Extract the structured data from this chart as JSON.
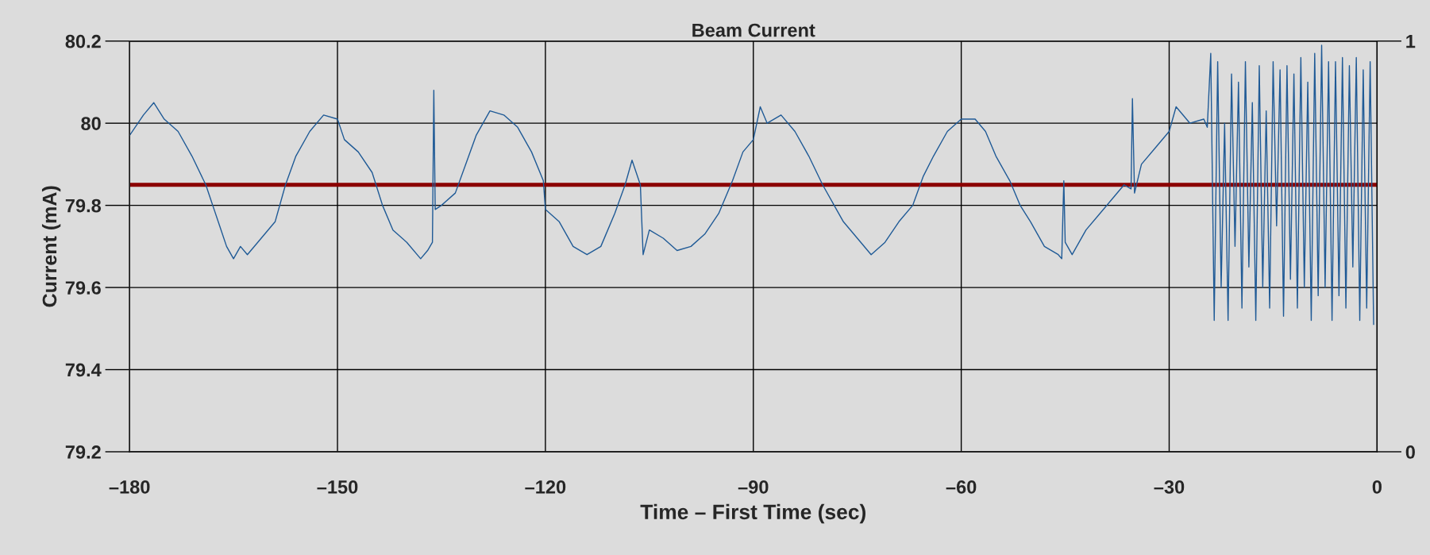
{
  "chart_data": {
    "type": "line",
    "title": "Beam Current",
    "xlabel": "Time – First Time (sec)",
    "ylabel": "Current (mA)",
    "xlim": [
      -180,
      0
    ],
    "xticks": [
      {
        "value": -180,
        "label": "–180"
      },
      {
        "value": -150,
        "label": "–150"
      },
      {
        "value": -120,
        "label": "–120"
      },
      {
        "value": -90,
        "label": "–90"
      },
      {
        "value": -60,
        "label": "–60"
      },
      {
        "value": -30,
        "label": "–30"
      },
      0
    ],
    "ylim": [
      79.2,
      80.2
    ],
    "yticks": [
      79.2,
      79.4,
      79.6,
      79.8,
      80,
      80.2
    ],
    "y2lim": [
      0,
      1
    ],
    "y2ticks": [
      0,
      1
    ],
    "grid": true,
    "series": [
      {
        "color": "#1f5a96",
        "x": [
          -180,
          -178,
          -176.5,
          -175,
          -173,
          -171,
          -169,
          -168,
          -167,
          -166,
          -165,
          -164,
          -163,
          -161,
          -159,
          -157.5,
          -156,
          -154,
          -152,
          -150,
          -149,
          -147,
          -145,
          -143.5,
          -142,
          -140,
          -138,
          -137,
          -136.3,
          -136.1,
          -135.9,
          -135,
          -133,
          -131.5,
          -130,
          -128,
          -126,
          -124,
          -122,
          -120.3,
          -120,
          -118,
          -116,
          -114,
          -112,
          -110,
          -108.5,
          -107.5,
          -106.3,
          -105.9,
          -105,
          -103,
          -101,
          -99,
          -97,
          -95,
          -93,
          -91.5,
          -90,
          -89,
          -88,
          -86,
          -84,
          -82,
          -80,
          -78,
          -77,
          -75,
          -73,
          -71,
          -69,
          -67,
          -65.5,
          -64,
          -62,
          -60,
          -58,
          -56.5,
          -55,
          -53,
          -51.5,
          -50,
          -48,
          -46,
          -45.5,
          -45.2,
          -45,
          -44,
          -42,
          -40,
          -38,
          -36.5,
          -35.5,
          -35.3,
          -35,
          -34,
          -32,
          -30,
          -29,
          -27,
          -25,
          -24.5,
          -24,
          -23.5,
          -23,
          -22.5,
          -22,
          -21.5,
          -21,
          -20.5,
          -20,
          -19.5,
          -19,
          -18.5,
          -18,
          -17.5,
          -17,
          -16.5,
          -16,
          -15.5,
          -15,
          -14.5,
          -14,
          -13.5,
          -13,
          -12.5,
          -12,
          -11.5,
          -11,
          -10.5,
          -10,
          -9.5,
          -9,
          -8.5,
          -8,
          -7.5,
          -7,
          -6.5,
          -6,
          -5.5,
          -5,
          -4.5,
          -4,
          -3.5,
          -3,
          -2.5,
          -2,
          -1.5,
          -1,
          -0.5
        ],
        "values": [
          79.97,
          80.02,
          80.05,
          80.01,
          79.98,
          79.92,
          79.85,
          79.8,
          79.75,
          79.7,
          79.67,
          79.7,
          79.68,
          79.72,
          79.76,
          79.85,
          79.92,
          79.98,
          80.02,
          80.01,
          79.96,
          79.93,
          79.88,
          79.8,
          79.74,
          79.71,
          79.67,
          79.69,
          79.71,
          80.08,
          79.79,
          79.8,
          79.83,
          79.9,
          79.97,
          80.03,
          80.02,
          79.99,
          79.93,
          79.86,
          79.79,
          79.76,
          79.7,
          79.68,
          79.7,
          79.78,
          79.85,
          79.91,
          79.85,
          79.68,
          79.74,
          79.72,
          79.69,
          79.7,
          79.73,
          79.78,
          79.86,
          79.93,
          79.96,
          80.04,
          80.0,
          80.02,
          79.98,
          79.92,
          79.85,
          79.79,
          79.76,
          79.72,
          79.68,
          79.71,
          79.76,
          79.8,
          79.87,
          79.92,
          79.98,
          80.01,
          80.01,
          79.98,
          79.92,
          79.86,
          79.8,
          79.76,
          79.7,
          79.68,
          79.67,
          79.86,
          79.71,
          79.68,
          79.74,
          79.78,
          79.82,
          79.85,
          79.84,
          80.06,
          79.83,
          79.9,
          79.94,
          79.98,
          80.04,
          80.0,
          80.01,
          79.99,
          80.17,
          79.52,
          80.15,
          79.6,
          80.0,
          79.52,
          80.12,
          79.7,
          80.1,
          79.55,
          80.15,
          79.65,
          80.05,
          79.52,
          80.14,
          79.6,
          80.03,
          79.55,
          80.15,
          79.75,
          80.13,
          79.53,
          80.14,
          79.62,
          80.12,
          79.55,
          80.16,
          79.6,
          80.1,
          79.52,
          80.17,
          79.58,
          80.19,
          79.6,
          80.15,
          79.52,
          80.15,
          79.58,
          80.16,
          79.55,
          80.14,
          79.65,
          80.16,
          79.52,
          80.13,
          79.55,
          80.15,
          79.51
        ]
      }
    ],
    "ref_lines": [
      {
        "axis": "y",
        "value": 79.85,
        "color": "#8b0000"
      }
    ]
  }
}
